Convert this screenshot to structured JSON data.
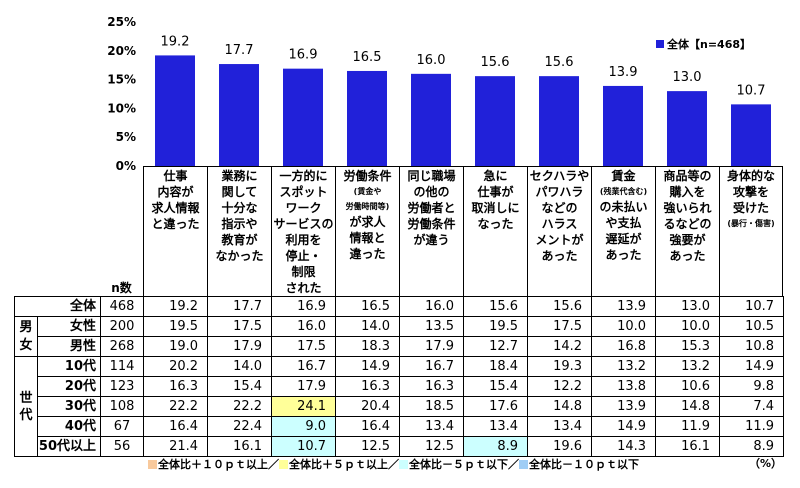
{
  "chart_data": {
    "type": "bar",
    "categories": [
      [
        "仕事",
        "内容が",
        "求人情報",
        "と違った"
      ],
      [
        "業務に",
        "関して",
        "十分な",
        "指示や",
        "教育が",
        "なかった"
      ],
      [
        "一方的に",
        "スポット",
        "ワーク",
        "サービスの",
        "利用を",
        "停止・",
        "制限",
        "された"
      ],
      [
        "労働条件",
        "(賃金や",
        "労働時間等)",
        "が求人",
        "情報と",
        "違った"
      ],
      [
        "同じ職場",
        "の他の",
        "労働者と",
        "労働条件",
        "が違う"
      ],
      [
        "急に",
        "仕事が",
        "取消しに",
        "なった"
      ],
      [
        "セクハラや",
        "パワハラ",
        "などの",
        "ハラス",
        "メントが",
        "あった"
      ],
      [
        "賃金",
        "(残業代含む)",
        "の未払い",
        "や支払",
        "遅延が",
        "あった"
      ],
      [
        "商品等の",
        "購入を",
        "強いられ",
        "るなどの",
        "強要が",
        "あった"
      ],
      [
        "身体的な",
        "攻撃を",
        "受けた",
        "(暴行・傷害)"
      ]
    ],
    "series": [
      {
        "name": "全体【n=468】",
        "values": [
          19.2,
          17.7,
          16.9,
          16.5,
          16.0,
          15.6,
          15.6,
          13.9,
          13.0,
          10.7
        ],
        "data_labels": [
          "19.2",
          "17.7",
          "16.9",
          "16.5",
          "16.0",
          "15.6",
          "15.6",
          "13.9",
          "13.0",
          "10.7"
        ],
        "color": "#2121d9"
      }
    ],
    "yticks": [
      "0%",
      "5%",
      "10%",
      "15%",
      "20%",
      "25%"
    ],
    "ylim": [
      0,
      25
    ],
    "grid": false,
    "legend_position": "top-right"
  },
  "table": {
    "n_header": "n数",
    "total": {
      "label": "全体",
      "n": "468",
      "values": [
        "19.2",
        "17.7",
        "16.9",
        "16.5",
        "16.0",
        "15.6",
        "15.6",
        "13.9",
        "13.0",
        "10.7"
      ]
    },
    "groups": [
      {
        "label": "男女",
        "rows": [
          {
            "label": "女性",
            "n": "200",
            "values": [
              "19.5",
              "17.5",
              "16.0",
              "14.0",
              "13.5",
              "19.5",
              "17.5",
              "10.0",
              "10.0",
              "10.5"
            ]
          },
          {
            "label": "男性",
            "n": "268",
            "values": [
              "19.0",
              "17.9",
              "17.5",
              "18.3",
              "17.9",
              "12.7",
              "14.2",
              "16.8",
              "15.3",
              "10.8"
            ]
          }
        ]
      },
      {
        "label": "世代",
        "rows": [
          {
            "label": "10代",
            "n": "114",
            "values": [
              "20.2",
              "14.0",
              "16.7",
              "14.9",
              "16.7",
              "18.4",
              "19.3",
              "13.2",
              "13.2",
              "14.9"
            ]
          },
          {
            "label": "20代",
            "n": "123",
            "values": [
              "16.3",
              "15.4",
              "17.9",
              "16.3",
              "16.3",
              "15.4",
              "12.2",
              "13.8",
              "10.6",
              "9.8"
            ]
          },
          {
            "label": "30代",
            "n": "108",
            "values": [
              "22.2",
              "22.2",
              "24.1",
              "20.4",
              "18.5",
              "17.6",
              "14.8",
              "13.9",
              "14.8",
              "7.4"
            ],
            "highlights": [
              [
                2,
                1
              ]
            ]
          },
          {
            "label": "40代",
            "n": "67",
            "values": [
              "16.4",
              "22.4",
              "9.0",
              "16.4",
              "13.4",
              "13.4",
              "13.4",
              "14.9",
              "11.9",
              "11.9"
            ],
            "highlights": [
              [
                2,
                2
              ]
            ]
          },
          {
            "label": "50代以上",
            "n": "56",
            "values": [
              "21.4",
              "16.1",
              "10.7",
              "12.5",
              "12.5",
              "8.9",
              "19.6",
              "14.3",
              "16.1",
              "8.9"
            ],
            "highlights": [
              [
                2,
                2
              ],
              [
                5,
                2
              ]
            ]
          }
        ]
      }
    ]
  },
  "highlight_legend": [
    {
      "label": "全体比＋１０ｐｔ以上／",
      "color": "#f8c99c"
    },
    {
      "label": "全体比＋５ｐｔ以上／",
      "color": "#ffff99"
    },
    {
      "label": "全体比－５ｐｔ以下／",
      "color": "#ccffff"
    },
    {
      "label": "全体比－１０ｐｔ以下",
      "color": "#9fcdf5"
    }
  ],
  "unit": "（%）"
}
